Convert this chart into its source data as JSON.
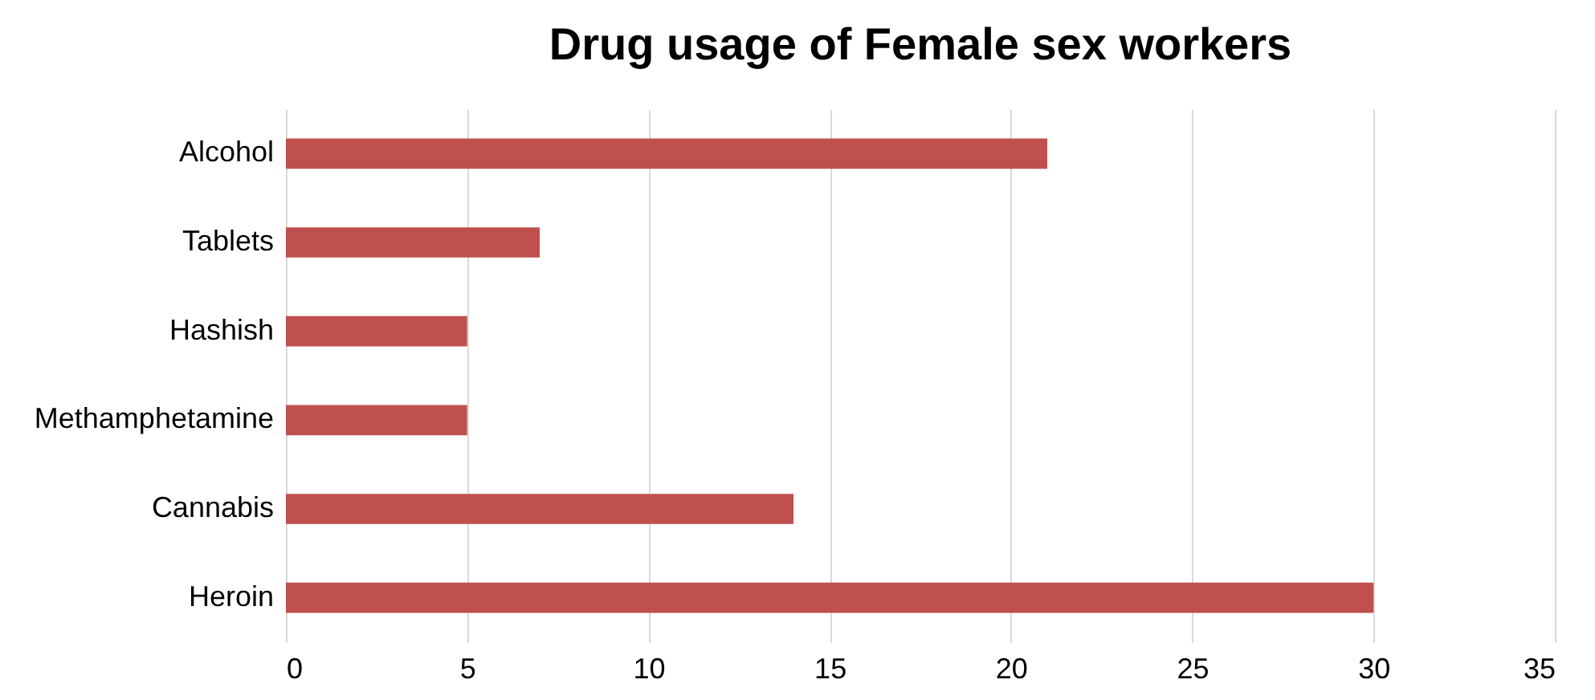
{
  "chart_data": {
    "type": "bar",
    "orientation": "horizontal",
    "title": "Drug usage of Female sex workers",
    "categories": [
      "Alcohol",
      "Tablets",
      "Hashish",
      "Methamphetamine",
      "Cannabis",
      "Heroin"
    ],
    "values": [
      21,
      7,
      5,
      5,
      14,
      30
    ],
    "color": "#c0504d",
    "xlim": [
      0,
      35
    ],
    "xticks": [
      0,
      5,
      10,
      15,
      20,
      25,
      30,
      35
    ],
    "grid": "x"
  }
}
